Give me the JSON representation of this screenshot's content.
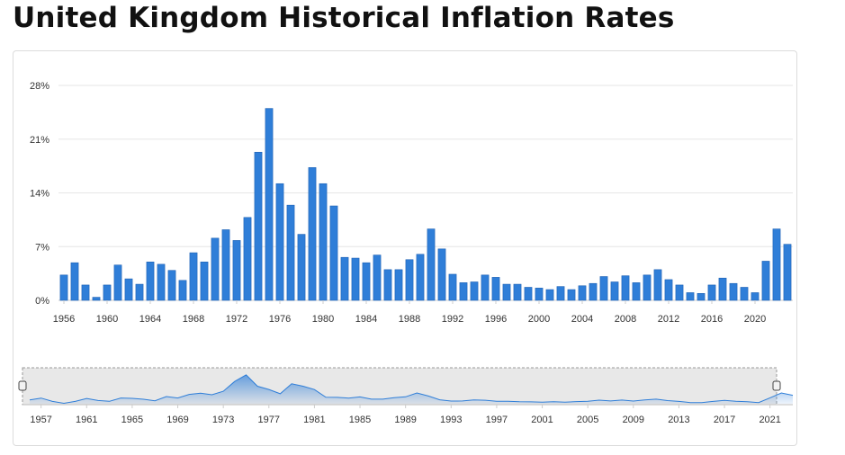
{
  "page": {
    "title": "United Kingdom Historical Inflation Rates"
  },
  "chart_data": {
    "type": "bar",
    "title": "United Kingdom Historical Inflation Rates",
    "xlabel": "",
    "ylabel": "",
    "ylim": [
      0,
      28
    ],
    "grid": true,
    "y_ticks": [
      "0%",
      "7%",
      "14%",
      "21%",
      "28%"
    ],
    "x_ticks": [
      "1956",
      "1960",
      "1964",
      "1968",
      "1972",
      "1976",
      "1980",
      "1984",
      "1988",
      "1992",
      "1996",
      "2000",
      "2004",
      "2008",
      "2012",
      "2016",
      "2020"
    ],
    "x": [
      1956,
      1957,
      1958,
      1959,
      1960,
      1961,
      1962,
      1963,
      1964,
      1965,
      1966,
      1967,
      1968,
      1969,
      1970,
      1971,
      1972,
      1973,
      1974,
      1975,
      1976,
      1977,
      1978,
      1979,
      1980,
      1981,
      1982,
      1983,
      1984,
      1985,
      1986,
      1987,
      1988,
      1989,
      1990,
      1991,
      1992,
      1993,
      1994,
      1995,
      1996,
      1997,
      1998,
      1999,
      2000,
      2001,
      2002,
      2003,
      2004,
      2005,
      2006,
      2007,
      2008,
      2009,
      2010,
      2011,
      2012,
      2013,
      2014,
      2015,
      2016,
      2017,
      2018,
      2019,
      2020,
      2021,
      2022,
      2023
    ],
    "values": [
      3.3,
      4.9,
      2.0,
      0.4,
      2.0,
      4.6,
      2.8,
      2.1,
      5.0,
      4.7,
      3.9,
      2.6,
      6.2,
      5.0,
      8.1,
      9.2,
      7.8,
      10.8,
      19.3,
      25.0,
      15.2,
      12.4,
      8.6,
      17.3,
      15.2,
      12.3,
      5.6,
      5.5,
      4.9,
      5.9,
      4.0,
      4.0,
      5.3,
      6.0,
      9.3,
      6.7,
      3.4,
      2.3,
      2.4,
      3.3,
      3.0,
      2.1,
      2.1,
      1.7,
      1.6,
      1.4,
      1.8,
      1.4,
      1.9,
      2.2,
      3.1,
      2.4,
      3.2,
      2.3,
      3.3,
      4.0,
      2.7,
      2.0,
      1.0,
      0.9,
      2.0,
      2.9,
      2.2,
      1.7,
      1.0,
      5.1,
      9.3,
      7.3
    ],
    "navigator": {
      "x_ticks": [
        "1957",
        "1961",
        "1965",
        "1969",
        "1973",
        "1977",
        "1981",
        "1985",
        "1989",
        "1993",
        "1997",
        "2001",
        "2005",
        "2009",
        "2013",
        "2017",
        "2021"
      ]
    },
    "colors": {
      "bar": "#2f7ed8",
      "bar_stroke": "#1f62b4",
      "grid": "#e6e6e6",
      "navigator_fill": "#e8e8e8",
      "navigator_series": "#2f7ed8"
    }
  }
}
